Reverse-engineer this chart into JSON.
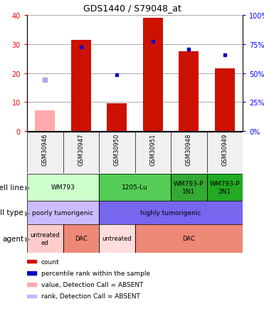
{
  "title": "GDS1440 / S79048_at",
  "samples": [
    "GSM30946",
    "GSM30947",
    "GSM30950",
    "GSM30951",
    "GSM30948",
    "GSM30949"
  ],
  "bar_heights": [
    7,
    31.5,
    9.5,
    39,
    27.5,
    21.5
  ],
  "bar_colors": [
    "#ffaaaa",
    "#cc1100",
    "#cc1100",
    "#cc1100",
    "#cc1100",
    "#cc1100"
  ],
  "rank_dots": [
    null,
    29,
    19.5,
    31,
    28.2,
    26.2
  ],
  "rank_absent_dot": [
    17.7,
    null,
    null,
    null,
    null,
    null
  ],
  "ylim_left": [
    0,
    40
  ],
  "ylim_right": [
    0,
    100
  ],
  "left_ticks": [
    0,
    10,
    20,
    30,
    40
  ],
  "right_ticks": [
    0,
    25,
    50,
    75,
    100
  ],
  "cell_line_data": [
    {
      "label": "WM793",
      "start": 0,
      "end": 2,
      "color": "#ccffcc"
    },
    {
      "label": "1205-Lu",
      "start": 2,
      "end": 4,
      "color": "#55cc55"
    },
    {
      "label": "WM793-P\n1N1",
      "start": 4,
      "end": 5,
      "color": "#33aa33"
    },
    {
      "label": "WM793-P\n2N1",
      "start": 5,
      "end": 6,
      "color": "#22aa22"
    }
  ],
  "cell_type_data": [
    {
      "label": "poorly tumorigenic",
      "start": 0,
      "end": 2,
      "color": "#ccbbff"
    },
    {
      "label": "highly tumorigenic",
      "start": 2,
      "end": 6,
      "color": "#7766ee"
    }
  ],
  "agent_data": [
    {
      "label": "untreated\ned",
      "start": 0,
      "end": 1,
      "color": "#ffcccc"
    },
    {
      "label": "DAC",
      "start": 1,
      "end": 2,
      "color": "#ee8877"
    },
    {
      "label": "untreated",
      "start": 2,
      "end": 3,
      "color": "#ffdddd"
    },
    {
      "label": "DAC",
      "start": 3,
      "end": 6,
      "color": "#ee8877"
    }
  ],
  "legend_items": [
    {
      "color": "#cc1100",
      "label": "count"
    },
    {
      "color": "#0000cc",
      "label": "percentile rank within the sample"
    },
    {
      "color": "#ffaaaa",
      "label": "value, Detection Call = ABSENT"
    },
    {
      "color": "#bbbbff",
      "label": "rank, Detection Call = ABSENT"
    }
  ],
  "row_labels": [
    "cell line",
    "cell type",
    "agent"
  ],
  "bar_width": 0.55,
  "bg_color": "#f0f0f0"
}
